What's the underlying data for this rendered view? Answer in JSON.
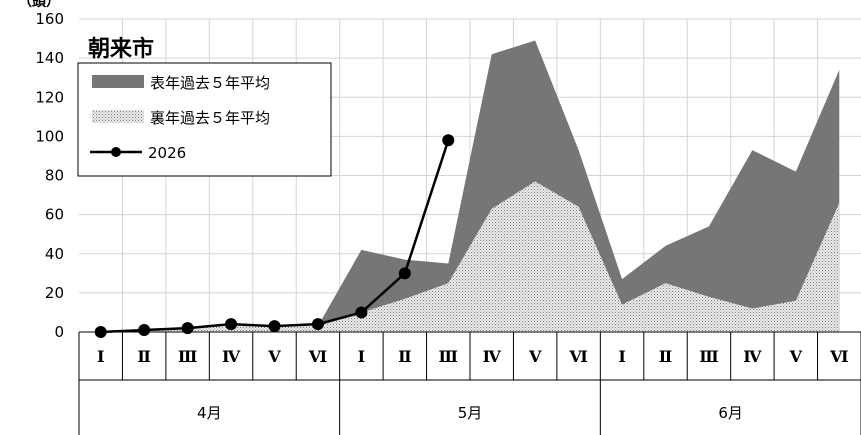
{
  "chart_data": {
    "type": "area",
    "title": "朝来市",
    "ylabel": "（頭）",
    "ylim": [
      0,
      160
    ],
    "yticks": [
      0,
      20,
      40,
      60,
      80,
      100,
      120,
      140,
      160
    ],
    "grid": true,
    "legend_position": "top-left",
    "categories": [
      "Ⅰ",
      "Ⅱ",
      "Ⅲ",
      "Ⅳ",
      "Ⅴ",
      "Ⅵ",
      "Ⅰ",
      "Ⅱ",
      "Ⅲ",
      "Ⅳ",
      "Ⅴ",
      "Ⅵ",
      "Ⅰ",
      "Ⅱ",
      "Ⅲ",
      "Ⅳ",
      "Ⅴ",
      "Ⅵ"
    ],
    "months": [
      "4月",
      "5月",
      "6月"
    ],
    "series": [
      {
        "name": "表年過去５年平均",
        "kind": "area",
        "color": "#767676",
        "values": [
          0,
          1,
          2,
          3,
          3,
          3,
          42,
          37,
          35,
          142,
          149,
          93,
          27,
          44,
          54,
          93,
          82,
          134
        ]
      },
      {
        "name": "裏年過去５年平均",
        "kind": "area-dotted",
        "color": "#d9d9d9",
        "values": [
          0,
          1,
          2,
          3,
          3,
          3,
          10,
          17,
          25,
          63,
          77,
          64,
          14,
          25,
          18,
          12,
          16,
          66
        ]
      },
      {
        "name": "2026",
        "kind": "line",
        "color": "#000000",
        "values": [
          0,
          1,
          2,
          4,
          3,
          4,
          10,
          30,
          98,
          null,
          null,
          null,
          null,
          null,
          null,
          null,
          null,
          null
        ]
      }
    ]
  }
}
